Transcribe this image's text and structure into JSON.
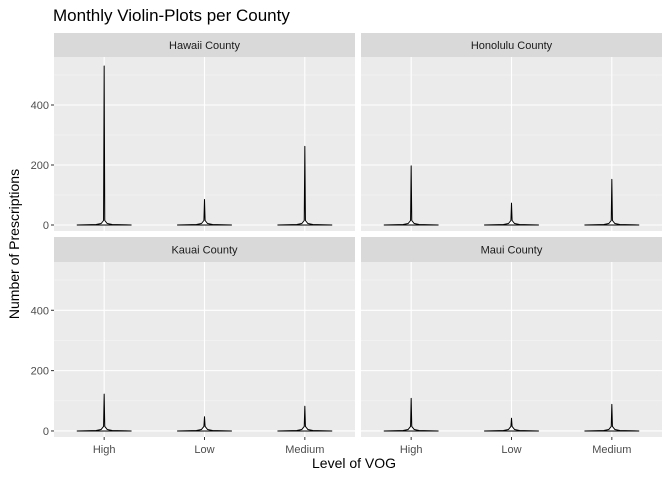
{
  "chart_data": {
    "type": "violin",
    "title": "Monthly Violin-Plots per County",
    "xlabel": "Level of VOG",
    "ylabel": "Number of Prescriptions",
    "categories": [
      "High",
      "Low",
      "Medium"
    ],
    "y_ticks": [
      0,
      200,
      400
    ],
    "ylim": [
      -20,
      560
    ],
    "grid": true,
    "facet_layout": "2x2",
    "panels": [
      {
        "name": "Hawaii County",
        "max": [
          530,
          85,
          262
        ]
      },
      {
        "name": "Honolulu County",
        "max": [
          197,
          73,
          152
        ]
      },
      {
        "name": "Kauai County",
        "max": [
          122,
          47,
          82
        ]
      },
      {
        "name": "Maui County",
        "max": [
          108,
          42,
          88
        ]
      }
    ]
  }
}
